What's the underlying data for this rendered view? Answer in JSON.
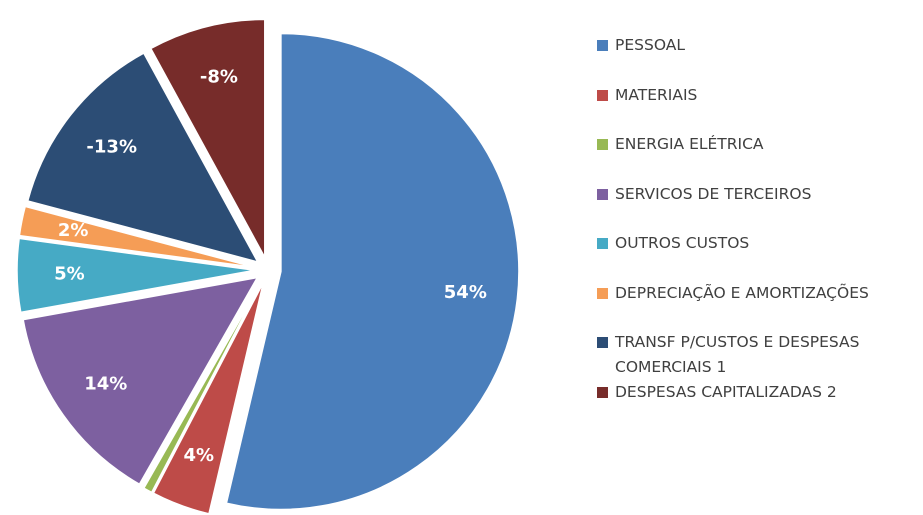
{
  "chart_data": {
    "type": "pie",
    "categories": [
      "PESSOAL",
      "MATERIAIS",
      "ENERGIA ELÉTRICA",
      "SERVICOS DE TERCEIROS",
      "OUTROS CUSTOS",
      "DEPRECIAÇÃO E AMORTIZAÇÕES",
      "TRANSF P/CUSTOS E DESPESAS COMERCIAIS 1",
      "DESPESAS CAPITALIZADAS 2"
    ],
    "values": [
      54,
      4,
      0.6,
      14,
      5,
      2,
      -13,
      -8
    ],
    "value_labels": [
      "54%",
      "4%",
      null,
      "14%",
      "5%",
      "2%",
      "-13%",
      "-8%"
    ],
    "colors": [
      "#4a7ebb",
      "#be4b48",
      "#98b954",
      "#7d60a0",
      "#46aac5",
      "#f59d56",
      "#2c4d75",
      "#772c2a"
    ],
    "legend": "right"
  }
}
